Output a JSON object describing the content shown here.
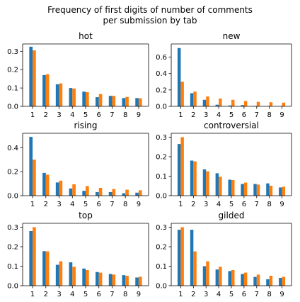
{
  "title_line1": "Frequency of first digits of number of comments",
  "title_line2": "per submission by tab",
  "colors": {
    "series1": "#1f77b4",
    "series2": "#ff7f0e"
  },
  "chart_data": [
    {
      "type": "bar",
      "title": "hot",
      "categories": [
        "1",
        "2",
        "3",
        "4",
        "5",
        "6",
        "7",
        "8",
        "9"
      ],
      "ylim": [
        0,
        0.34
      ],
      "yticks": [
        "0.0",
        "0.1",
        "0.2",
        "0.3"
      ],
      "series": [
        {
          "values": [
            0.325,
            0.17,
            0.12,
            0.1,
            0.08,
            0.05,
            0.057,
            0.045,
            0.045
          ]
        },
        {
          "values": [
            0.305,
            0.175,
            0.125,
            0.097,
            0.077,
            0.067,
            0.057,
            0.051,
            0.044
          ]
        }
      ]
    },
    {
      "type": "bar",
      "title": "new",
      "categories": [
        "1",
        "2",
        "3",
        "4",
        "5",
        "6",
        "7",
        "8",
        "9"
      ],
      "ylim": [
        0,
        0.76
      ],
      "yticks": [
        "0.0",
        "0.2",
        "0.4",
        "0.6"
      ],
      "series": [
        {
          "values": [
            0.71,
            0.16,
            0.08,
            0.02,
            0.01,
            0.015,
            0.005,
            0.003,
            0.002
          ]
        },
        {
          "values": [
            0.3,
            0.18,
            0.12,
            0.095,
            0.08,
            0.065,
            0.055,
            0.05,
            0.045
          ]
        }
      ]
    },
    {
      "type": "bar",
      "title": "rising",
      "categories": [
        "1",
        "2",
        "3",
        "4",
        "5",
        "6",
        "7",
        "8",
        "9"
      ],
      "ylim": [
        0,
        0.52
      ],
      "yticks": [
        "0.0",
        "0.2",
        "0.4"
      ],
      "series": [
        {
          "values": [
            0.49,
            0.19,
            0.11,
            0.06,
            0.04,
            0.03,
            0.03,
            0.02,
            0.025
          ]
        },
        {
          "values": [
            0.3,
            0.175,
            0.125,
            0.095,
            0.08,
            0.065,
            0.055,
            0.05,
            0.045
          ]
        }
      ]
    },
    {
      "type": "bar",
      "title": "controversial",
      "categories": [
        "1",
        "2",
        "3",
        "4",
        "5",
        "6",
        "7",
        "8",
        "9"
      ],
      "ylim": [
        0,
        0.32
      ],
      "yticks": [
        "0.0",
        "0.1",
        "0.2",
        "0.3"
      ],
      "series": [
        {
          "values": [
            0.265,
            0.18,
            0.135,
            0.115,
            0.082,
            0.06,
            0.06,
            0.063,
            0.042
          ]
        },
        {
          "values": [
            0.3,
            0.176,
            0.125,
            0.097,
            0.08,
            0.067,
            0.057,
            0.051,
            0.046
          ]
        }
      ]
    },
    {
      "type": "bar",
      "title": "top",
      "categories": [
        "1",
        "2",
        "3",
        "4",
        "5",
        "6",
        "7",
        "8",
        "9"
      ],
      "ylim": [
        0,
        0.32
      ],
      "yticks": [
        "0.0",
        "0.1",
        "0.2",
        "0.3"
      ],
      "series": [
        {
          "values": [
            0.28,
            0.177,
            0.107,
            0.12,
            0.088,
            0.07,
            0.06,
            0.054,
            0.042
          ]
        },
        {
          "values": [
            0.3,
            0.176,
            0.125,
            0.097,
            0.08,
            0.067,
            0.057,
            0.051,
            0.046
          ]
        }
      ]
    },
    {
      "type": "bar",
      "title": "gilded",
      "categories": [
        "1",
        "2",
        "3",
        "4",
        "5",
        "6",
        "7",
        "8",
        "9"
      ],
      "ylim": [
        0,
        0.32
      ],
      "yticks": [
        "0.0",
        "0.1",
        "0.2",
        "0.3"
      ],
      "series": [
        {
          "values": [
            0.287,
            0.287,
            0.1,
            0.083,
            0.075,
            0.06,
            0.045,
            0.033,
            0.04
          ]
        },
        {
          "values": [
            0.3,
            0.176,
            0.125,
            0.097,
            0.08,
            0.067,
            0.057,
            0.051,
            0.046
          ]
        }
      ]
    }
  ]
}
